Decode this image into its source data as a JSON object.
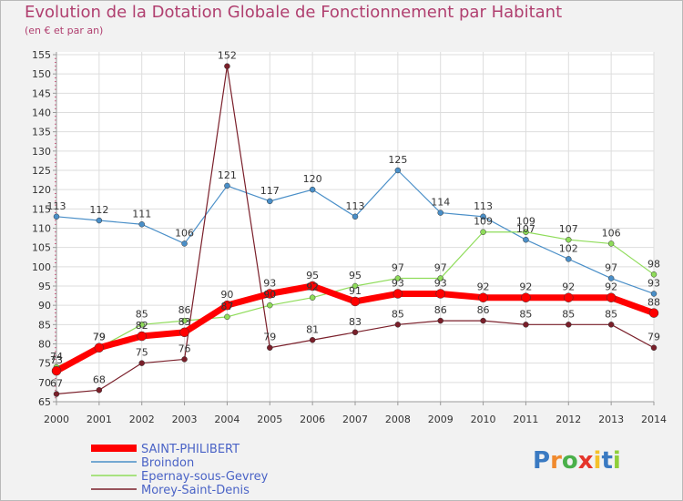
{
  "chart_data": {
    "type": "line",
    "title": "Evolution de la Dotation Globale de Fonctionnement par Habitant",
    "subtitle": "(en € et par an)",
    "xlabel": "",
    "ylabel": "",
    "x": [
      "2000",
      "2001",
      "2002",
      "2003",
      "2004",
      "2005",
      "2006",
      "2007",
      "2008",
      "2009",
      "2010",
      "2011",
      "2012",
      "2013",
      "2014"
    ],
    "ylim": [
      65,
      155
    ],
    "yticks": [
      65,
      70,
      75,
      80,
      85,
      90,
      95,
      100,
      105,
      110,
      115,
      120,
      125,
      130,
      135,
      140,
      145,
      150,
      155
    ],
    "grid": true,
    "legend_position": "bottom-left",
    "series": [
      {
        "name": "Broindon",
        "color": "#4a8fc8",
        "width": 1.2,
        "marker": 3,
        "values": [
          113,
          112,
          111,
          106,
          121,
          117,
          120,
          113,
          125,
          114,
          113,
          107,
          102,
          97,
          93
        ]
      },
      {
        "name": "Epernay-sous-Gevrey",
        "color": "#8fdc5a",
        "width": 1.2,
        "marker": 3,
        "values": [
          74,
          79,
          85,
          86,
          87,
          90,
          92,
          95,
          97,
          97,
          109,
          109,
          107,
          106,
          98
        ]
      },
      {
        "name": "Morey-Saint-Denis",
        "color": "#7a1f2a",
        "width": 1.2,
        "marker": 3,
        "values": [
          67,
          68,
          75,
          76,
          152,
          79,
          81,
          83,
          85,
          86,
          86,
          85,
          85,
          85,
          79
        ]
      },
      {
        "name": "SAINT-PHILIBERT",
        "color": "#ff0000",
        "width": 7,
        "marker": 5,
        "values": [
          73,
          79,
          82,
          83,
          90,
          93,
          95,
          91,
          93,
          93,
          92,
          92,
          92,
          92,
          88
        ]
      }
    ],
    "legend_order": [
      "SAINT-PHILIBERT",
      "Broindon",
      "Epernay-sous-Gevrey",
      "Morey-Saint-Denis"
    ]
  },
  "watermark": {
    "text": "Proxiti"
  }
}
